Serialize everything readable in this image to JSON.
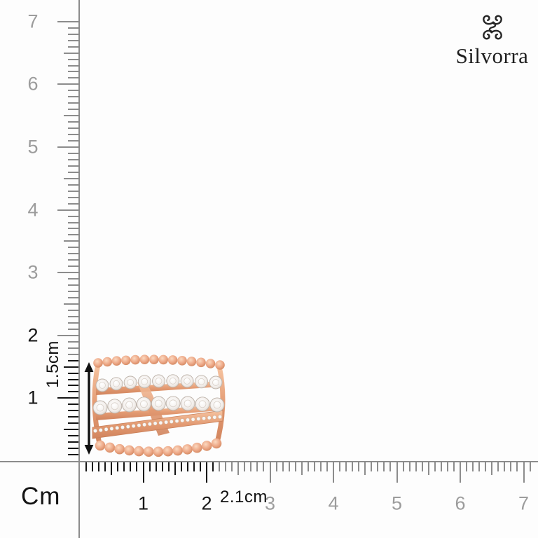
{
  "brand": {
    "name": "Silvorra",
    "icon": "quad-scroll-knot-icon"
  },
  "rulers": {
    "unit_label": "Cm",
    "vertical_numbers": [
      "1",
      "2",
      "3",
      "4",
      "5",
      "6",
      "7"
    ],
    "horizontal_numbers": [
      "1",
      "2",
      "3",
      "4",
      "5",
      "6",
      "7"
    ],
    "colors": {
      "line": "#8c8c8c",
      "number": "#9c9c9c",
      "highlight": "#151515"
    }
  },
  "annotations": {
    "height": "1.5cm",
    "width": "2.1cm",
    "color": "#111111"
  },
  "product": {
    "name": "rose-gold-diamond-multiband-ring",
    "colors": {
      "gold": "#e8a47e",
      "gold_light": "#f9d4b8",
      "gold_dark": "#cd8158",
      "diamond": "#f7f5f3",
      "diamond_edge": "#bdb3aa"
    }
  }
}
